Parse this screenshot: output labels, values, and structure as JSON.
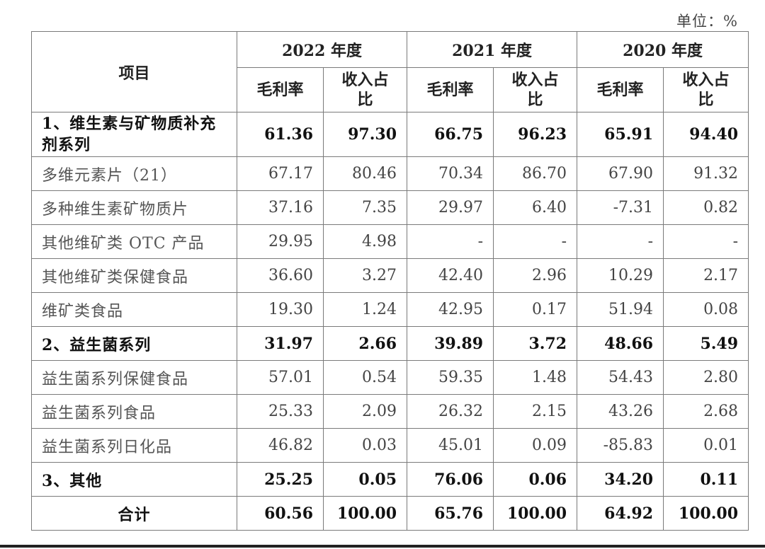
{
  "unit_label": "单位：%",
  "header": {
    "item": "项目",
    "years": [
      "2022 年度",
      "2021 年度",
      "2020 年度"
    ],
    "gross_margin": "毛利率",
    "revenue_share": "收入占比"
  },
  "rows": [
    {
      "name": "1、维生素与矿物质补充剂系列",
      "bold": true,
      "values": [
        "61.36",
        "97.30",
        "66.75",
        "96.23",
        "65.91",
        "94.40"
      ]
    },
    {
      "name": "多维元素片（21）",
      "bold": false,
      "values": [
        "67.17",
        "80.46",
        "70.34",
        "86.70",
        "67.90",
        "91.32"
      ]
    },
    {
      "name": "多种维生素矿物质片",
      "bold": false,
      "values": [
        "37.16",
        "7.35",
        "29.97",
        "6.40",
        "-7.31",
        "0.82"
      ]
    },
    {
      "name": "其他维矿类 OTC 产品",
      "bold": false,
      "values": [
        "29.95",
        "4.98",
        "-",
        "-",
        "-",
        "-"
      ]
    },
    {
      "name": "其他维矿类保健食品",
      "bold": false,
      "values": [
        "36.60",
        "3.27",
        "42.40",
        "2.96",
        "10.29",
        "2.17"
      ]
    },
    {
      "name": "维矿类食品",
      "bold": false,
      "values": [
        "19.30",
        "1.24",
        "42.95",
        "0.17",
        "51.94",
        "0.08"
      ]
    },
    {
      "name": "2、益生菌系列",
      "bold": true,
      "values": [
        "31.97",
        "2.66",
        "39.89",
        "3.72",
        "48.66",
        "5.49"
      ]
    },
    {
      "name": "益生菌系列保健食品",
      "bold": false,
      "values": [
        "57.01",
        "0.54",
        "59.35",
        "1.48",
        "54.43",
        "2.80"
      ]
    },
    {
      "name": "益生菌系列食品",
      "bold": false,
      "values": [
        "25.33",
        "2.09",
        "26.32",
        "2.15",
        "43.26",
        "2.68"
      ]
    },
    {
      "name": "益生菌系列日化品",
      "bold": false,
      "values": [
        "46.82",
        "0.03",
        "45.01",
        "0.09",
        "-85.83",
        "0.01"
      ]
    },
    {
      "name": "3、其他",
      "bold": true,
      "values": [
        "25.25",
        "0.05",
        "76.06",
        "0.06",
        "34.20",
        "0.11"
      ]
    },
    {
      "name": "合计",
      "bold": true,
      "total": true,
      "values": [
        "60.56",
        "100.00",
        "65.76",
        "100.00",
        "64.92",
        "100.00"
      ]
    }
  ]
}
